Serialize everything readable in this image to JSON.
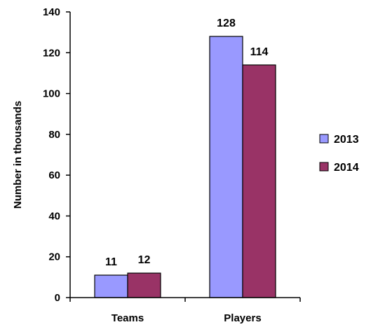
{
  "chart_data": {
    "type": "bar",
    "title": "",
    "xlabel": "",
    "ylabel": "Number in thousands",
    "categories": [
      "Teams",
      "Players"
    ],
    "series": [
      {
        "name": "2013",
        "values": [
          11,
          128
        ],
        "color": "#9999ff"
      },
      {
        "name": "2014",
        "values": [
          12,
          114
        ],
        "color": "#993366"
      }
    ],
    "ylim": [
      0,
      140
    ],
    "yticks": [
      0,
      20,
      40,
      60,
      80,
      100,
      120,
      140
    ],
    "grid": false,
    "legend": "right",
    "data_labels": true
  }
}
